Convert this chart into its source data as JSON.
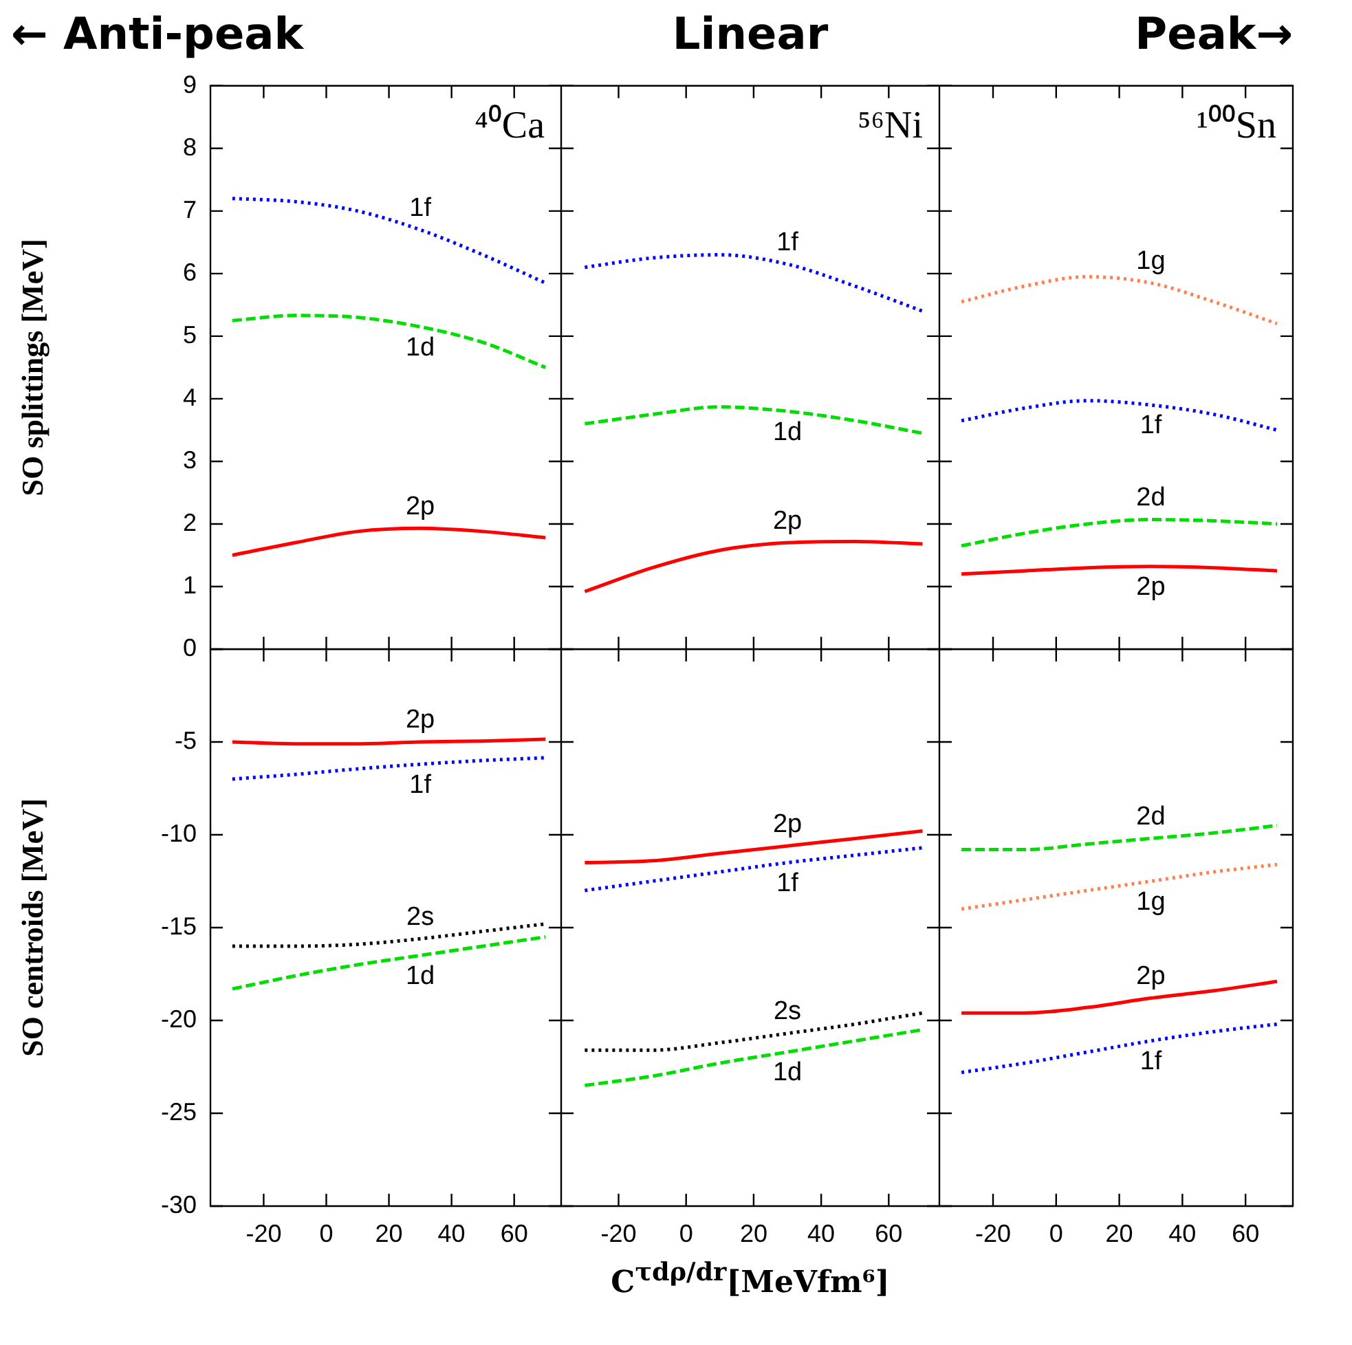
{
  "chart_data": [
    {
      "type": "line",
      "title": "← Anti-peak",
      "ylabel": "SO splittings [MeV]",
      "xlim": [
        -37,
        75
      ],
      "xticks": [
        -20,
        0,
        20,
        40,
        60
      ],
      "ylim": [
        0,
        9
      ],
      "yticks": [
        0,
        1,
        2,
        3,
        4,
        5,
        6,
        7,
        8,
        9
      ],
      "tick_labels": "y",
      "annotations": [
        "⁴⁰Ca"
      ],
      "x": [
        -30,
        -10,
        10,
        30,
        50,
        70
      ],
      "series": [
        {
          "name": "1f",
          "color": "#0000ff",
          "line_style": "dotted",
          "values": [
            7.2,
            7.15,
            7.0,
            6.7,
            6.3,
            5.85
          ]
        },
        {
          "name": "1d",
          "color": "#00dd00",
          "line_style": "dashed",
          "values": [
            5.25,
            5.33,
            5.3,
            5.15,
            4.9,
            4.5
          ]
        },
        {
          "name": "2p",
          "color": "#ff0000",
          "line_style": "solid",
          "values": [
            1.5,
            1.7,
            1.88,
            1.93,
            1.88,
            1.78
          ]
        }
      ]
    },
    {
      "type": "line",
      "title": "Linear",
      "xlim": [
        -37,
        75
      ],
      "xticks": [
        -20,
        0,
        20,
        40,
        60
      ],
      "ylim": [
        0,
        9
      ],
      "yticks": [
        0,
        1,
        2,
        3,
        4,
        5,
        6,
        7,
        8,
        9
      ],
      "tick_labels": false,
      "annotations": [
        "⁵⁶Ni"
      ],
      "x": [
        -30,
        -10,
        10,
        30,
        50,
        70
      ],
      "series": [
        {
          "name": "1f",
          "color": "#0000ff",
          "line_style": "dotted",
          "values": [
            6.1,
            6.25,
            6.3,
            6.15,
            5.8,
            5.4
          ]
        },
        {
          "name": "1d",
          "color": "#00dd00",
          "line_style": "dashed",
          "values": [
            3.6,
            3.75,
            3.87,
            3.8,
            3.65,
            3.45
          ]
        },
        {
          "name": "2p",
          "color": "#ff0000",
          "line_style": "solid",
          "values": [
            0.92,
            1.3,
            1.58,
            1.7,
            1.72,
            1.68
          ]
        }
      ]
    },
    {
      "type": "line",
      "title": "Peak→",
      "xlim": [
        -37,
        75
      ],
      "xticks": [
        -20,
        0,
        20,
        40,
        60
      ],
      "ylim": [
        0,
        9
      ],
      "yticks": [
        0,
        1,
        2,
        3,
        4,
        5,
        6,
        7,
        8,
        9
      ],
      "tick_labels": false,
      "annotations": [
        "¹⁰⁰Sn"
      ],
      "x": [
        -30,
        -10,
        10,
        30,
        50,
        70
      ],
      "series": [
        {
          "name": "1g",
          "color": "#ff7f50",
          "line_style": "dotted",
          "values": [
            5.55,
            5.8,
            5.95,
            5.85,
            5.55,
            5.2
          ]
        },
        {
          "name": "1f",
          "color": "#0000ff",
          "line_style": "dotted",
          "values": [
            3.65,
            3.85,
            3.97,
            3.9,
            3.75,
            3.5
          ]
        },
        {
          "name": "2d",
          "color": "#00dd00",
          "line_style": "dashed",
          "values": [
            1.65,
            1.85,
            2.0,
            2.07,
            2.05,
            2.0
          ]
        },
        {
          "name": "2p",
          "color": "#ff0000",
          "line_style": "solid",
          "values": [
            1.2,
            1.25,
            1.3,
            1.32,
            1.3,
            1.25
          ]
        }
      ]
    },
    {
      "type": "line",
      "ylabel": "SO centroids [MeV]",
      "xlim": [
        -37,
        75
      ],
      "xticks": [
        -20,
        0,
        20,
        40,
        60
      ],
      "ylim": [
        -30,
        0
      ],
      "yticks": [
        -30,
        -25,
        -20,
        -15,
        -10,
        -5,
        {
          "value": 0,
          "label": null
        }
      ],
      "x": [
        -30,
        -10,
        10,
        30,
        50,
        70
      ],
      "series": [
        {
          "name": "2p",
          "color": "#ff0000",
          "line_style": "solid",
          "values": [
            -5.0,
            -5.1,
            -5.1,
            -5.0,
            -4.95,
            -4.85
          ]
        },
        {
          "name": "1f",
          "color": "#0000ff",
          "line_style": "dotted",
          "values": [
            -7.0,
            -6.75,
            -6.45,
            -6.2,
            -6.0,
            -5.85
          ]
        },
        {
          "name": "2s",
          "color": "#000000",
          "line_style": "dotted",
          "values": [
            -16.0,
            -16.0,
            -15.9,
            -15.6,
            -15.2,
            -14.8
          ]
        },
        {
          "name": "1d",
          "color": "#00dd00",
          "line_style": "dashed",
          "values": [
            -18.3,
            -17.6,
            -17.0,
            -16.5,
            -16.0,
            -15.5
          ]
        }
      ]
    },
    {
      "type": "line",
      "xlabel": "C$^{τdρ/dr}$[MeVfm⁶]",
      "xlim": [
        -37,
        75
      ],
      "xticks": [
        -20,
        0,
        20,
        40,
        60
      ],
      "ylim": [
        -30,
        0
      ],
      "yticks": [
        -30,
        -25,
        -20,
        -15,
        -10,
        -5,
        0
      ],
      "tick_labels": "x",
      "x": [
        -30,
        -10,
        10,
        30,
        50,
        70
      ],
      "series": [
        {
          "name": "2p",
          "color": "#ff0000",
          "line_style": "solid",
          "values": [
            -11.5,
            -11.4,
            -11.0,
            -10.6,
            -10.2,
            -9.8
          ]
        },
        {
          "name": "1f",
          "color": "#0000ff",
          "line_style": "dotted",
          "values": [
            -13.0,
            -12.5,
            -12.0,
            -11.5,
            -11.1,
            -10.7
          ]
        },
        {
          "name": "2s",
          "color": "#000000",
          "line_style": "dotted",
          "values": [
            -21.6,
            -21.6,
            -21.2,
            -20.7,
            -20.2,
            -19.6
          ]
        },
        {
          "name": "1d",
          "color": "#00dd00",
          "line_style": "dashed",
          "values": [
            -23.5,
            -23.0,
            -22.3,
            -21.7,
            -21.1,
            -20.5
          ]
        }
      ]
    },
    {
      "type": "line",
      "xlim": [
        -37,
        75
      ],
      "xticks": [
        -20,
        0,
        20,
        40,
        60
      ],
      "ylim": [
        -30,
        0
      ],
      "yticks": [
        -30,
        -25,
        -20,
        -15,
        -10,
        -5,
        0
      ],
      "tick_labels": "x",
      "x": [
        -30,
        -10,
        10,
        30,
        50,
        70
      ],
      "series": [
        {
          "name": "2d",
          "color": "#00dd00",
          "line_style": "dashed",
          "values": [
            -10.8,
            -10.8,
            -10.5,
            -10.2,
            -9.9,
            -9.5
          ]
        },
        {
          "name": "1g",
          "color": "#ff7f50",
          "line_style": "dotted",
          "values": [
            -14.0,
            -13.5,
            -13.0,
            -12.5,
            -12.0,
            -11.6
          ]
        },
        {
          "name": "2p",
          "color": "#ff0000",
          "line_style": "solid",
          "values": [
            -19.6,
            -19.6,
            -19.3,
            -18.8,
            -18.4,
            -17.9
          ]
        },
        {
          "name": "1f",
          "color": "#0000ff",
          "line_style": "dotted",
          "values": [
            -22.8,
            -22.3,
            -21.7,
            -21.1,
            -20.6,
            -20.2
          ]
        }
      ]
    }
  ]
}
